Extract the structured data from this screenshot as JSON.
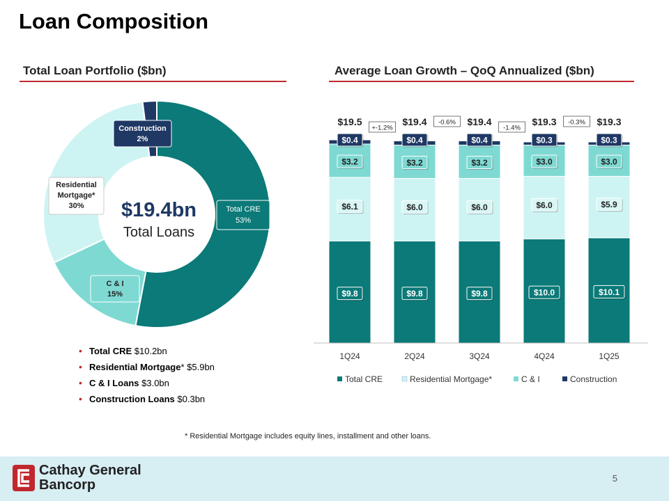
{
  "title": "Loan Composition",
  "left_section_title": "Total Loan Portfolio ($bn)",
  "right_section_title": "Average Loan Growth – QoQ Annualized ($bn)",
  "donut": {
    "center_value": "$19.4bn",
    "center_label": "Total Loans",
    "slices": [
      {
        "name": "Total CRE",
        "pct_label": "53%",
        "value": 53,
        "color": "#0b7a78"
      },
      {
        "name": "C & I",
        "pct_label": "15%",
        "value": 15,
        "color": "#7fd9d3"
      },
      {
        "name": "Residential Mortgage*",
        "pct_label": "30%",
        "value": 30,
        "color": "#cdf4f3"
      },
      {
        "name": "Construction",
        "pct_label": "2%",
        "value": 2,
        "color": "#1f3864"
      }
    ],
    "label_names": {
      "cre": "Total CRE",
      "ci": "C & I",
      "res_line1": "Residential",
      "res_line2": "Mortgage*",
      "construction": "Construction"
    }
  },
  "bullets": [
    {
      "bold": "Total CRE",
      "rest": " $10.2bn"
    },
    {
      "bold": "Residential Mortgage",
      "rest": "* $5.9bn"
    },
    {
      "bold": "C & I Loans",
      "rest": " $3.0bn"
    },
    {
      "bold": "Construction Loans",
      "rest": " $0.3bn"
    }
  ],
  "chart_data": [
    {
      "type": "pie",
      "title": "Total Loan Portfolio ($bn)",
      "center_text": "$19.4bn Total Loans",
      "categories": [
        "Total CRE",
        "C & I",
        "Residential Mortgage*",
        "Construction"
      ],
      "values": [
        53,
        15,
        30,
        2
      ],
      "unit": "%"
    },
    {
      "type": "bar",
      "stacked": true,
      "title": "Average Loan Growth – QoQ Annualized ($bn)",
      "categories": [
        "1Q24",
        "2Q24",
        "3Q24",
        "4Q24",
        "1Q25"
      ],
      "series": [
        {
          "name": "Total CRE",
          "color": "#0b7a78",
          "values": [
            9.8,
            9.8,
            9.8,
            10.0,
            10.1
          ],
          "labels": [
            "$9.8",
            "$9.8",
            "$9.8",
            "$10.0",
            "$10.1"
          ]
        },
        {
          "name": "Residential Mortgage*",
          "color": "#cdf4f3",
          "values": [
            6.1,
            6.0,
            6.0,
            6.0,
            5.9
          ],
          "labels": [
            "$6.1",
            "$6.0",
            "$6.0",
            "$6.0",
            "$5.9"
          ]
        },
        {
          "name": "C & I",
          "color": "#7fd9d3",
          "values": [
            3.2,
            3.2,
            3.2,
            3.0,
            3.0
          ],
          "labels": [
            "$3.2",
            "$3.2",
            "$3.2",
            "$3.0",
            "$3.0"
          ]
        },
        {
          "name": "Construction",
          "color": "#1f3864",
          "values": [
            0.4,
            0.4,
            0.4,
            0.3,
            0.3
          ],
          "labels": [
            "$0.4",
            "$0.4",
            "$0.4",
            "$0.3",
            "$0.3"
          ]
        }
      ],
      "totals": [
        "$19.5",
        "$19.4",
        "$19.4",
        "$19.3",
        "$19.3"
      ],
      "growth_labels": [
        "+-1.2%",
        "-0.6%",
        "-1.4%",
        "-0.3%"
      ],
      "ylim": [
        0,
        19.5
      ],
      "legend_position": "bottom",
      "grid": false
    }
  ],
  "footnote": "*  Residential Mortgage includes equity lines, installment and other loans.",
  "footer": {
    "company_line1": "Cathay General",
    "company_line2": "Bancorp",
    "page_number": "5"
  }
}
